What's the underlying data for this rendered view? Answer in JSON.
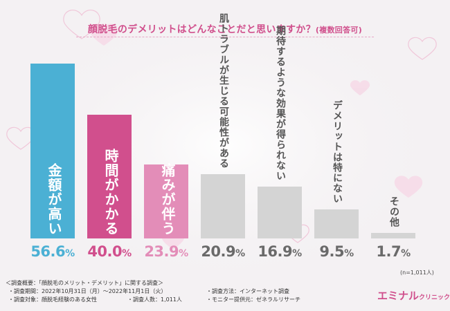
{
  "header": {
    "title": "顔脱毛のデメリットはどんなことだと思いますか？",
    "note": "(複数回答可)"
  },
  "colors": {
    "blue": "#4bb0d4",
    "magenta": "#d14f8d",
    "pink": "#e38db8",
    "gray": "#d4d4d4",
    "pct_gray": "#6a6a6a"
  },
  "chart_data": {
    "type": "bar",
    "title": "顔脱毛のデメリットはどんなことだと思いますか？(複数回答可)",
    "categories": [
      "金額が高い",
      "時間がかかる",
      "痛みが伴う",
      "肌トラブルが生じる可能性がある",
      "期待するような効果が得られない",
      "デメリットは特にない",
      "その他"
    ],
    "values": [
      56.6,
      40.0,
      23.9,
      20.9,
      16.9,
      9.5,
      1.7
    ],
    "value_labels": [
      "56.6",
      "40.0",
      "23.9",
      "20.9",
      "16.9",
      "9.5",
      "1.7"
    ],
    "unit": "%",
    "ylim": [
      0,
      60
    ],
    "xlabel": "",
    "ylabel": "",
    "grid": false
  },
  "sample_size": "(n=1,011人)",
  "survey": {
    "overview": "＜調査概要：「顔脱毛のメリット・デメリット」に関する調査＞",
    "period": "・調査期間：2022年10月31日（月）〜2022年11月1日（火）",
    "target": "・調査対象：顔脱毛経験のある女性",
    "count": "・調査人数：1,011人",
    "method": "・調査方法：インターネット調査",
    "provider": "・モニター提供元：ゼネラルリサーチ"
  },
  "logo": {
    "main": "エミナル",
    "sub": "クリニック"
  }
}
